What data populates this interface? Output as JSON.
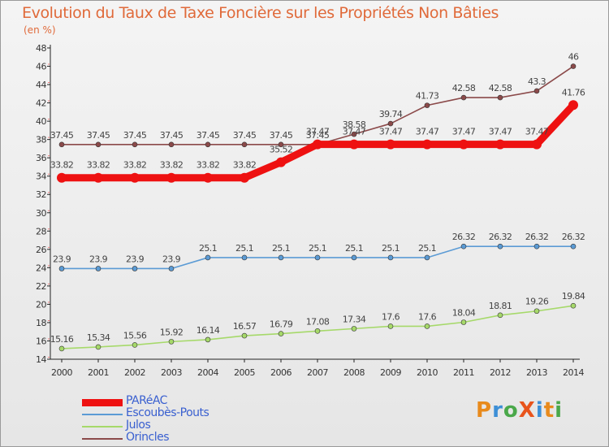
{
  "title": "Evolution du Taux de Taxe Foncière sur les Propriétés Non Bâties",
  "unit_label": "(en %)",
  "logo": {
    "text": "ProXiti",
    "letters": [
      {
        "ch": "P",
        "color": "#e88a1c"
      },
      {
        "ch": "r",
        "color": "#3d8fd6"
      },
      {
        "ch": "o",
        "color": "#4aa84a"
      },
      {
        "ch": "X",
        "color": "#e8541c"
      },
      {
        "ch": "i",
        "color": "#3d8fd6"
      },
      {
        "ch": "t",
        "color": "#e88a1c"
      },
      {
        "ch": "i",
        "color": "#4aa84a"
      }
    ]
  },
  "chart_data": {
    "type": "line",
    "title": "Evolution du Taux de Taxe Foncière sur les Propriétés Non Bâties",
    "ylabel": "(en %)",
    "xlabel": "",
    "x": [
      "2000",
      "2001",
      "2002",
      "2003",
      "2004",
      "2005",
      "2006",
      "2007",
      "2008",
      "2009",
      "2010",
      "2011",
      "2012",
      "2013",
      "2014"
    ],
    "ylim": [
      14,
      48
    ],
    "yticks": [
      14,
      16,
      18,
      20,
      22,
      24,
      26,
      28,
      30,
      32,
      34,
      36,
      38,
      40,
      42,
      44,
      46,
      48
    ],
    "grid": false,
    "legend_position": "bottom-left",
    "series": [
      {
        "name": "PARéAC",
        "color": "#ee1111",
        "values": [
          33.82,
          33.82,
          33.82,
          33.82,
          33.82,
          33.82,
          35.52,
          37.47,
          37.47,
          37.47,
          37.47,
          37.47,
          37.47,
          37.47,
          41.76
        ],
        "labels": [
          "33.82",
          "33.82",
          "33.82",
          "33.82",
          "33.82",
          "33.82",
          "35.52",
          "37.47",
          "37.47",
          "37.47",
          "37.47",
          "37.47",
          "37.47",
          "37.47",
          "41.76"
        ]
      },
      {
        "name": "Escoubès-Pouts",
        "color": "#5b9bd5",
        "values": [
          23.9,
          23.9,
          23.9,
          23.9,
          25.1,
          25.1,
          25.1,
          25.1,
          25.1,
          25.1,
          25.1,
          26.32,
          26.32,
          26.32,
          26.32
        ],
        "labels": [
          "23.9",
          "23.9",
          "23.9",
          "23.9",
          "25.1",
          "25.1",
          "25.1",
          "25.1",
          "25.1",
          "25.1",
          "25.1",
          "26.32",
          "26.32",
          "26.32",
          "26.32"
        ]
      },
      {
        "name": "Julos",
        "color": "#a6d96a",
        "values": [
          15.16,
          15.34,
          15.56,
          15.92,
          16.14,
          16.57,
          16.79,
          17.08,
          17.34,
          17.6,
          17.6,
          18.04,
          18.81,
          19.26,
          19.84
        ],
        "labels": [
          "15.16",
          "15.34",
          "15.56",
          "15.92",
          "16.14",
          "16.57",
          "16.79",
          "17.08",
          "17.34",
          "17.6",
          "17.6",
          "18.04",
          "18.81",
          "19.26",
          "19.84"
        ]
      },
      {
        "name": "Orincles",
        "color": "#8b4a4a",
        "values": [
          37.45,
          37.45,
          37.45,
          37.45,
          37.45,
          37.45,
          37.45,
          37.45,
          38.58,
          39.74,
          41.73,
          42.58,
          42.58,
          43.3,
          46
        ],
        "labels": [
          "37.45",
          "37.45",
          "37.45",
          "37.45",
          "37.45",
          "37.45",
          "37.45",
          "37.45",
          "38.58",
          "39.74",
          "41.73",
          "42.58",
          "42.58",
          "43.3",
          "46"
        ]
      }
    ]
  }
}
